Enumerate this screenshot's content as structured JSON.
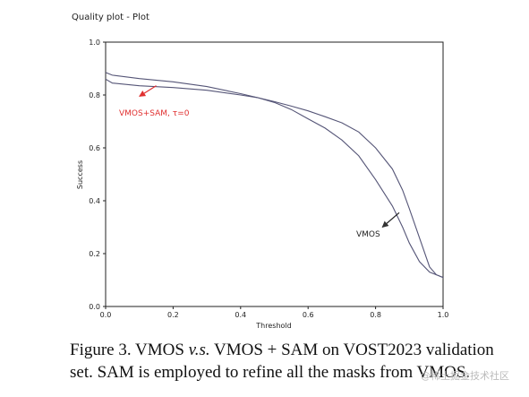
{
  "plot_title": "Quality plot - Plot",
  "chart_data": {
    "type": "line",
    "title": "Quality plot - Plot",
    "xlabel": "Threshold",
    "ylabel": "Success",
    "xlim": [
      0.0,
      1.0
    ],
    "ylim": [
      0.0,
      1.0
    ],
    "x_ticks": [
      "0.0",
      "0.2",
      "0.4",
      "0.6",
      "0.8",
      "1.0"
    ],
    "y_ticks": [
      "0.0",
      "0.2",
      "0.4",
      "0.6",
      "0.8",
      "1.0"
    ],
    "grid": false,
    "series": [
      {
        "name": "VMOS+SAM, τ=0",
        "color": "#555577",
        "points": [
          [
            0.0,
            0.86
          ],
          [
            0.02,
            0.845
          ],
          [
            0.1,
            0.835
          ],
          [
            0.2,
            0.828
          ],
          [
            0.3,
            0.818
          ],
          [
            0.4,
            0.8
          ],
          [
            0.45,
            0.79
          ],
          [
            0.5,
            0.772
          ],
          [
            0.55,
            0.745
          ],
          [
            0.6,
            0.71
          ],
          [
            0.65,
            0.675
          ],
          [
            0.7,
            0.63
          ],
          [
            0.75,
            0.57
          ],
          [
            0.8,
            0.48
          ],
          [
            0.85,
            0.38
          ],
          [
            0.88,
            0.3
          ],
          [
            0.9,
            0.24
          ],
          [
            0.93,
            0.17
          ],
          [
            0.96,
            0.13
          ],
          [
            0.98,
            0.12
          ],
          [
            1.0,
            0.11
          ]
        ]
      },
      {
        "name": "VMOS",
        "color": "#555577",
        "points": [
          [
            0.0,
            0.885
          ],
          [
            0.02,
            0.875
          ],
          [
            0.1,
            0.862
          ],
          [
            0.2,
            0.85
          ],
          [
            0.3,
            0.832
          ],
          [
            0.4,
            0.805
          ],
          [
            0.45,
            0.79
          ],
          [
            0.5,
            0.775
          ],
          [
            0.55,
            0.758
          ],
          [
            0.6,
            0.74
          ],
          [
            0.65,
            0.718
          ],
          [
            0.7,
            0.695
          ],
          [
            0.75,
            0.66
          ],
          [
            0.8,
            0.6
          ],
          [
            0.85,
            0.52
          ],
          [
            0.88,
            0.44
          ],
          [
            0.9,
            0.37
          ],
          [
            0.93,
            0.26
          ],
          [
            0.96,
            0.15
          ],
          [
            0.98,
            0.12
          ],
          [
            1.0,
            0.11
          ]
        ]
      }
    ],
    "annotations": [
      {
        "text": "VMOS+SAM, τ=0",
        "color": "#e03030",
        "arrow_to": [
          0.1,
          0.795
        ],
        "arrow_from": [
          0.15,
          0.835
        ]
      },
      {
        "text": "VMOS",
        "color": "#222222",
        "arrow_to": [
          0.82,
          0.3
        ],
        "arrow_from": [
          0.87,
          0.355
        ]
      }
    ]
  },
  "caption": {
    "line1_lead": "Figure 3.  VMOS ",
    "line1_vs": "v.s.",
    "line1_tail": " VMOS + SAM on VOST2023 validation",
    "line2": "set. SAM is employed to refine all the masks from VMOS."
  },
  "watermark": "@稀土掘金技术社区"
}
